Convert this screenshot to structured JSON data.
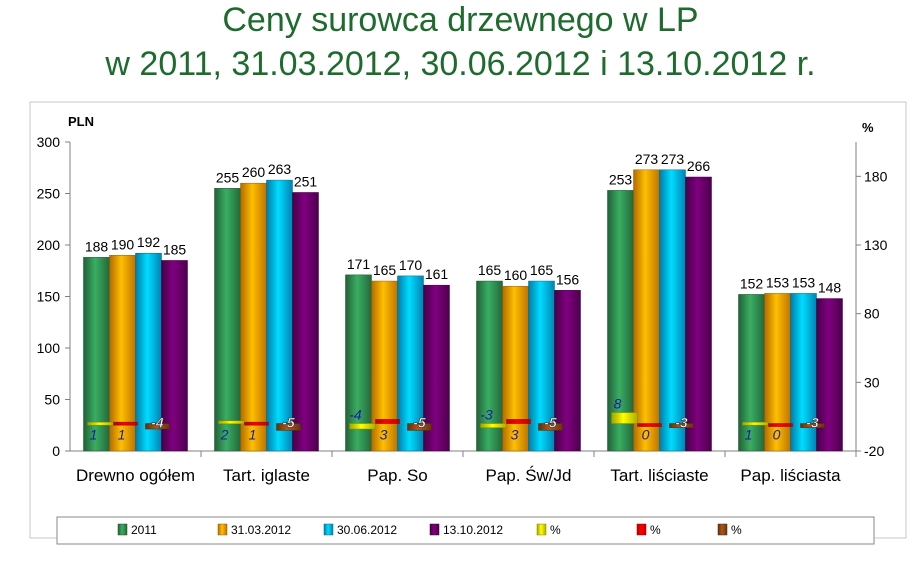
{
  "title_line1": "Ceny surowca drzewnego w LP",
  "title_line2": "w 2011, 31.03.2012, 30.06.2012 i 13.10.2012 r.",
  "chart_data": {
    "type": "bar",
    "left_axis_unit": "PLN",
    "right_axis_unit": "%",
    "ylim_left": [
      0,
      300
    ],
    "yticks_left": [
      0,
      50,
      100,
      150,
      200,
      250,
      300
    ],
    "ylim_right": [
      -20,
      205
    ],
    "yticks_right": [
      -20,
      30,
      80,
      130,
      180
    ],
    "grid": false,
    "legend_position": "bottom",
    "categories": [
      "Drewno ogółem",
      "Tart. iglaste",
      "Pap. So",
      "Pap. Św/Jd",
      "Tart. liściaste",
      "Pap. liściasta"
    ],
    "series": [
      {
        "name": "2011",
        "color": "#2e8b4e",
        "values": [
          188,
          255,
          171,
          165,
          253,
          152
        ]
      },
      {
        "name": "31.03.2012",
        "color": "#ff9900",
        "values": [
          190,
          260,
          165,
          160,
          273,
          153
        ]
      },
      {
        "name": "30.06.2012",
        "color": "#00b0f0",
        "values": [
          192,
          263,
          170,
          165,
          273,
          153
        ]
      },
      {
        "name": "13.10.2012",
        "color": "#660066",
        "values": [
          185,
          251,
          161,
          156,
          266,
          148
        ]
      }
    ],
    "pct_series": [
      {
        "name": "%",
        "color": "#e6e600",
        "values": [
          1,
          2,
          -4,
          -3,
          8,
          1
        ]
      },
      {
        "name": "%",
        "color": "#ff0000",
        "values": [
          1,
          1,
          3,
          3,
          0,
          0
        ]
      },
      {
        "name": "%",
        "color": "#8b4513",
        "values": [
          -4,
          -5,
          -5,
          -5,
          -3,
          -3
        ]
      }
    ]
  }
}
